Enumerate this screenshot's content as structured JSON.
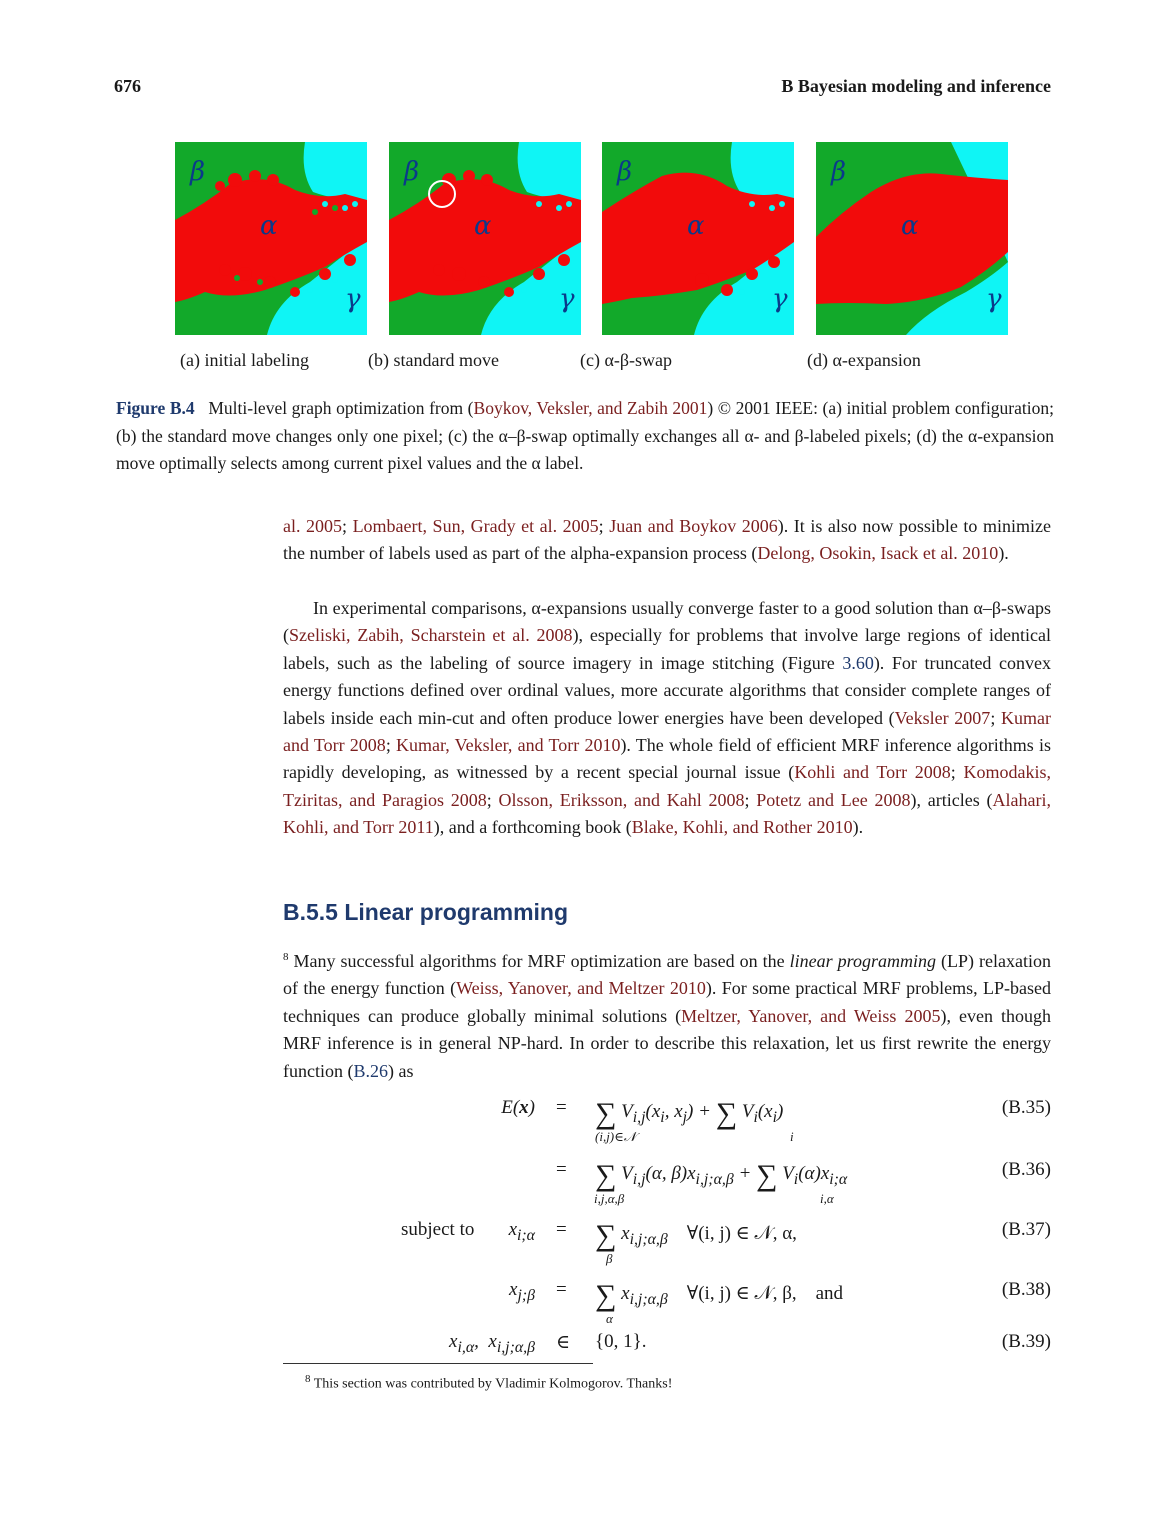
{
  "header": {
    "page_number": "676",
    "running_head": "B  Bayesian modeling and inference"
  },
  "figure": {
    "panels": [
      {
        "label": "(a) initial labeling",
        "symbols": [
          "β",
          "α",
          "γ"
        ]
      },
      {
        "label": "(b) standard move",
        "symbols": [
          "β",
          "α",
          "γ"
        ]
      },
      {
        "label": "(c) α-β-swap",
        "symbols": [
          "β",
          "α",
          "γ"
        ]
      },
      {
        "label": "(d) α-expansion",
        "symbols": [
          "β",
          "α",
          "γ"
        ]
      }
    ],
    "colors": {
      "green": "#12a92a",
      "red": "#f20b0b",
      "cyan": "#0ff5f5"
    },
    "caption_label": "Figure B.4",
    "caption_p1": "Multi-level graph optimization from (",
    "caption_cite": "Boykov, Veksler, and Zabih 2001",
    "caption_p2": ") © 2001 IEEE: (a) initial problem configuration; (b) the standard move changes only one pixel; (c) the α–β-swap optimally exchanges all α- and β-labeled pixels; (d) the α-expansion move optimally selects among current pixel values and the α label."
  },
  "para1": {
    "c1": "al. 2005",
    "t1": "; ",
    "c2": "Lombaert, Sun, Grady et al. 2005",
    "t2": "; ",
    "c3": "Juan and Boykov 2006",
    "t3": "). It is also now possible to minimize the number of labels used as part of the alpha-expansion process (",
    "c4": "Delong, Osokin, Isack et al. 2010",
    "t4": ")."
  },
  "para2": {
    "t1": "In experimental comparisons, α-expansions usually converge faster to a good solution than α–β-swaps (",
    "c1": "Szeliski, Zabih, Scharstein et al. 2008",
    "t2": "), especially for problems that involve large regions of identical labels, such as the labeling of source imagery in image stitching (Figure ",
    "r1": "3.60",
    "t3": "). For truncated convex energy functions defined over ordinal values, more accurate algorithms that consider complete ranges of labels inside each min-cut and often produce lower energies have been developed (",
    "c2": "Veksler 2007",
    "t4": "; ",
    "c3": "Kumar and Torr 2008",
    "t5": "; ",
    "c4": "Kumar, Veksler, and Torr 2010",
    "t6": "). The whole field of efficient MRF inference algorithms is rapidly developing, as witnessed by a recent special journal issue (",
    "c5": "Kohli and Torr 2008",
    "t7": "; ",
    "c6": "Komodakis, Tziritas, and Paragios 2008",
    "t8": "; ",
    "c7": "Olsson, Eriksson, and Kahl 2008",
    "t9": "; ",
    "c8": "Potetz and Lee 2008",
    "t10": "), articles (",
    "c9": "Alahari, Kohli, and Torr 2011",
    "t11": "), and a forthcoming book (",
    "c10": "Blake, Kohli, and Rother 2010",
    "t12": ")."
  },
  "section": {
    "title": "B.5.5  Linear programming"
  },
  "para3": {
    "fn": "8",
    "t1": " Many successful algorithms for MRF optimization are based on the ",
    "em": "linear programming",
    "t2": " (LP) relaxation of the energy function (",
    "c1": "Weiss, Yanover, and Meltzer 2010",
    "t3": "). For some practical MRF problems, LP-based techniques can produce globally minimal solutions (",
    "c2": "Meltzer, Yanover, and Weiss 2005",
    "t4": "), even though MRF inference is in general NP-hard. In order to describe this relaxation, let us first rewrite the energy function (",
    "r1": "B.26",
    "t5": ") as"
  },
  "equations": {
    "e35": {
      "lhs": "E(x)",
      "rel": "=",
      "sum1_under": "(i,j)∈𝒩",
      "term1": "V",
      "term1_sub": "i,j",
      "term1_arg": "(x",
      "term1_arg_tail": ")",
      "sum2_under": "i",
      "term2": "V",
      "term2_sub": "i",
      "term2_arg": "(x",
      "tag": "(B.35)"
    },
    "e36": {
      "rel": "=",
      "sum1_under": "i,j,α,β",
      "term1": "V",
      "term1_sub": "i,j",
      "term1_arg": "(α, β)x",
      "term1_xsub": "i,j;α,β",
      "sum2_under": "i,α",
      "term2": "V",
      "term2_sub": "i",
      "term2_arg": "(α)x",
      "term2_xsub": "i;α",
      "tag": "(B.36)"
    },
    "e37": {
      "prefix": "subject to",
      "lhs": "x",
      "lhs_sub": "i;α",
      "rel": "=",
      "sum_under": "β",
      "term": "x",
      "term_sub": "i,j;α,β",
      "cond": "∀(i, j) ∈ 𝒩, α,",
      "tag": "(B.37)"
    },
    "e38": {
      "lhs": "x",
      "lhs_sub": "j;β",
      "rel": "=",
      "sum_under": "α",
      "term": "x",
      "term_sub": "i,j;α,β",
      "cond": "∀(i, j) ∈ 𝒩, β,",
      "and": "and",
      "tag": "(B.38)"
    },
    "e39": {
      "lhs": "x",
      "lhs_sub": "i,α",
      "lhs2": "x",
      "lhs2_sub": "i,j;α,β",
      "rel": "∈",
      "set": "{0, 1}.",
      "tag": "(B.39)"
    }
  },
  "footnote": {
    "mark": "8",
    "text": "This section was contributed by Vladimir Kolmogorov. Thanks!"
  }
}
